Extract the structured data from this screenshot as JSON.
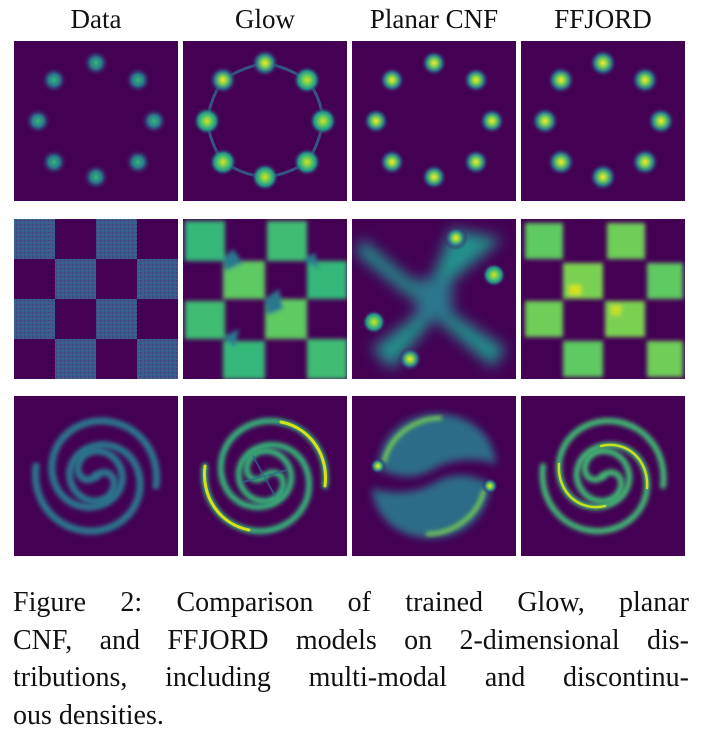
{
  "columns": [
    "Data",
    "Glow",
    "Planar CNF",
    "FFJORD"
  ],
  "rows": [
    "eight-gaussians",
    "checkerboard",
    "two-spirals"
  ],
  "caption": {
    "line1": "Figure 2:  Comparison of trained Glow, planar",
    "line2": "CNF, and FFJORD models on 2-dimensional dis-",
    "line3": "tributions, including multi-modal and discontinu-",
    "line4": "ous densities."
  },
  "colors": {
    "background": "#440154",
    "low": "#3b528b",
    "mid": "#21918c",
    "high": "#5ec962",
    "peak": "#fde725"
  }
}
